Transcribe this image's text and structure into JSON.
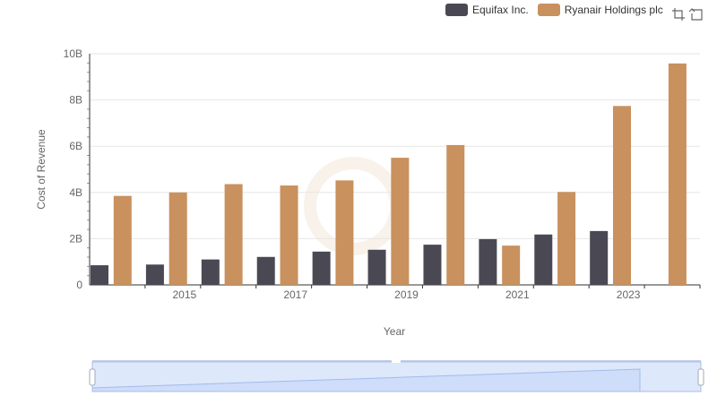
{
  "colors": {
    "equifax": "#4a4953",
    "ryanair": "#c8915d",
    "grid": "#e6e6e6",
    "axis": "#333333",
    "zoom_fill": "#dbe5f9",
    "zoom_border": "#c3cde8"
  },
  "legend": {
    "items": [
      "Equifax Inc.",
      "Ryanair Holdings plc"
    ]
  },
  "toolbox": {
    "icons": [
      "zoom-icon",
      "restore-icon"
    ]
  },
  "chart_data": {
    "type": "bar",
    "title": "",
    "xlabel": "Year",
    "ylabel": "Cost of Revenue",
    "ylim": [
      0,
      10000000000
    ],
    "yticks": [
      "0",
      "2B",
      "4B",
      "6B",
      "8B",
      "10B"
    ],
    "xticks": [
      "2015",
      "2017",
      "2019",
      "2021",
      "2023"
    ],
    "categories": [
      "2014",
      "2015",
      "2016",
      "2017",
      "2018",
      "2019",
      "2020",
      "2021",
      "2022",
      "2023",
      "2024"
    ],
    "series": [
      {
        "name": "Equifax Inc.",
        "values": [
          850000000,
          880000000,
          1100000000,
          1210000000,
          1440000000,
          1520000000,
          1740000000,
          1980000000,
          2180000000,
          2330000000,
          null
        ]
      },
      {
        "name": "Ryanair Holdings plc",
        "values": [
          3850000000,
          4000000000,
          4360000000,
          4300000000,
          4520000000,
          5500000000,
          6050000000,
          1700000000,
          4020000000,
          7740000000,
          9580000000
        ]
      }
    ],
    "grid": true,
    "legend_position": "top-right",
    "datazoom": {
      "start": 0,
      "end": 100
    }
  }
}
